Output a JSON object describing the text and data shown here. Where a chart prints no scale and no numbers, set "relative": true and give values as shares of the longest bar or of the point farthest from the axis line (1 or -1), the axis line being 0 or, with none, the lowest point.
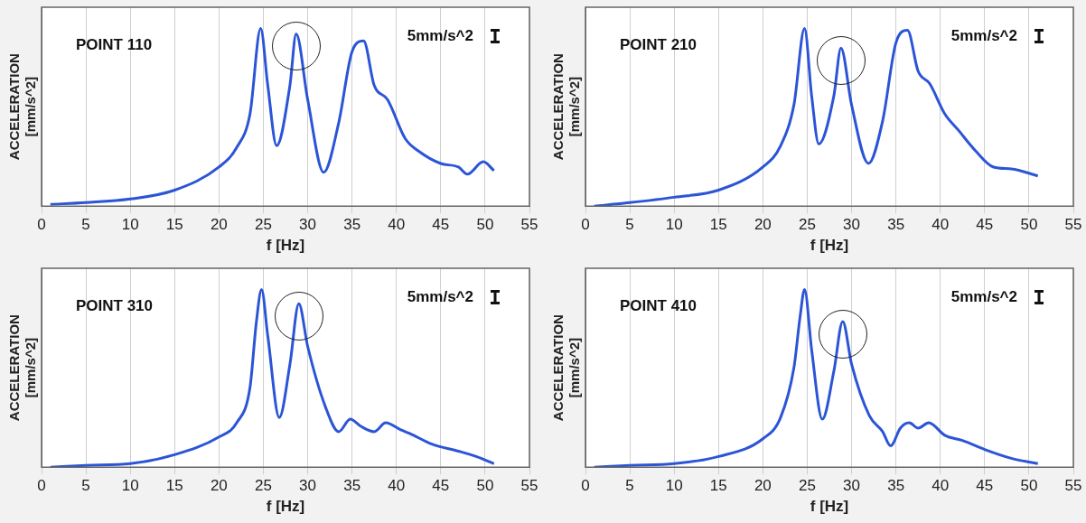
{
  "chart_data": [
    {
      "type": "line",
      "ylabel": "ACCELERATION [mm/s^2]",
      "xlabel": "f [Hz]",
      "xlim": [
        0,
        55
      ],
      "xticks": [
        0,
        5,
        10,
        15,
        20,
        25,
        30,
        35,
        40,
        45,
        50,
        55
      ],
      "relative": true,
      "grid": "x",
      "tick_labels": "x",
      "annotations": [
        "POINT 110",
        "5mm/s^2"
      ],
      "x": [
        1,
        5,
        10,
        15,
        20,
        22,
        23.5,
        24.7,
        25.5,
        26.5,
        28,
        28.7,
        30,
        31.8,
        33.5,
        35,
        36.3,
        37.5,
        39,
        41,
        42.5,
        45,
        47,
        48,
        49.8,
        51
      ],
      "series": [
        {
          "color": "#2b55d6",
          "values": [
            0.01,
            0.02,
            0.04,
            0.09,
            0.22,
            0.33,
            0.52,
            1,
            0.68,
            0.34,
            0.68,
            0.97,
            0.6,
            0.19,
            0.47,
            0.87,
            0.93,
            0.68,
            0.6,
            0.38,
            0.31,
            0.24,
            0.22,
            0.18,
            0.25,
            0.2
          ]
        }
      ]
    },
    {
      "type": "line",
      "ylabel": "ACCELERATION [mm/s^2]",
      "xlabel": "f [Hz]",
      "xlim": [
        0,
        55
      ],
      "xticks": [
        0,
        5,
        10,
        15,
        20,
        25,
        30,
        35,
        40,
        45,
        50,
        55
      ],
      "relative": true,
      "grid": "x",
      "tick_labels": "x",
      "annotations": [
        "POINT 210",
        "5mm/s^2"
      ],
      "x": [
        1,
        5,
        10,
        15,
        20,
        22,
        23.5,
        24.7,
        25.5,
        26.3,
        28,
        28.8,
        30,
        31.9,
        33.5,
        35,
        36.3,
        37.5,
        38.8,
        40.5,
        42,
        44,
        46,
        48,
        51
      ],
      "series": [
        {
          "color": "#2b55d6",
          "values": [
            0,
            0.02,
            0.05,
            0.09,
            0.22,
            0.34,
            0.57,
            1,
            0.62,
            0.35,
            0.62,
            0.89,
            0.57,
            0.24,
            0.48,
            0.92,
            0.99,
            0.76,
            0.69,
            0.52,
            0.43,
            0.31,
            0.22,
            0.21,
            0.17
          ]
        }
      ]
    },
    {
      "type": "line",
      "ylabel": "ACCELERATION [mm/s^2]",
      "xlabel": "f [Hz]",
      "xlim": [
        0,
        55
      ],
      "xticks": [
        0,
        5,
        10,
        15,
        20,
        25,
        30,
        35,
        40,
        45,
        50,
        55
      ],
      "relative": true,
      "grid": "x",
      "tick_labels": "x",
      "annotations": [
        "POINT 310",
        "5mm/s^2"
      ],
      "x": [
        1,
        5,
        10,
        15,
        20,
        22,
        23.5,
        24.2,
        24.8,
        25.5,
        26.8,
        28,
        29,
        30,
        32,
        33.5,
        34.8,
        36,
        37.5,
        38.8,
        40.5,
        41.5,
        44,
        47,
        49,
        51
      ],
      "series": [
        {
          "color": "#2b55d6",
          "values": [
            0,
            0.01,
            0.02,
            0.07,
            0.17,
            0.25,
            0.45,
            0.81,
            1,
            0.74,
            0.28,
            0.58,
            0.92,
            0.68,
            0.34,
            0.2,
            0.27,
            0.23,
            0.2,
            0.25,
            0.21,
            0.19,
            0.13,
            0.09,
            0.06,
            0.02
          ]
        }
      ]
    },
    {
      "type": "line",
      "ylabel": "ACCELERATION [mm/s^2]",
      "xlabel": "f [Hz]",
      "xlim": [
        0,
        55
      ],
      "xticks": [
        0,
        5,
        10,
        15,
        20,
        25,
        30,
        35,
        40,
        45,
        50,
        55
      ],
      "relative": true,
      "grid": "x",
      "tick_labels": "x",
      "annotations": [
        "POINT 410",
        "5mm/s^2"
      ],
      "x": [
        1,
        5,
        10,
        15,
        20,
        22,
        23.5,
        24.2,
        24.7,
        25.5,
        26.7,
        28,
        29,
        30,
        32,
        33.5,
        34.4,
        35.5,
        36.5,
        37.5,
        38.7,
        40.5,
        42.5,
        45,
        48,
        51
      ],
      "series": [
        {
          "color": "#2b55d6",
          "values": [
            0,
            0.01,
            0.02,
            0.06,
            0.16,
            0.28,
            0.56,
            0.85,
            1,
            0.66,
            0.27,
            0.54,
            0.82,
            0.58,
            0.29,
            0.2,
            0.12,
            0.22,
            0.25,
            0.22,
            0.25,
            0.18,
            0.15,
            0.1,
            0.05,
            0.02
          ]
        }
      ]
    }
  ]
}
